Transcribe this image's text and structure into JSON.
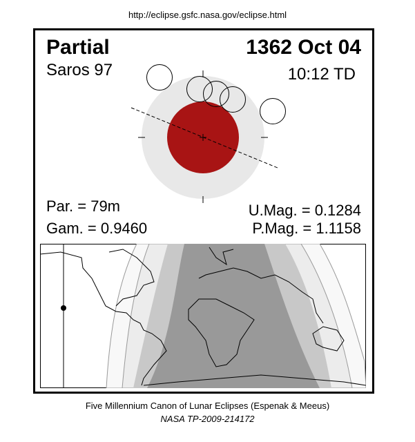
{
  "url": "http://eclipse.gsfc.nasa.gov/eclipse.html",
  "eclipse_type": "Partial",
  "date": "1362 Oct 04",
  "saros": "Saros  97",
  "time": "10:12 TD",
  "parameters": {
    "duration": "Par. =  79m",
    "gamma": "Gam. = 0.9460",
    "umbral_magnitude": "U.Mag. = 0.1284",
    "penumbral_magnitude": "P.Mag. = 1.1158"
  },
  "colors": {
    "umbra": "#a81414",
    "penumbra": "#e8e8e8",
    "map_umbral": "#999999",
    "map_partial": "#c8c8c8",
    "map_penumbral": "#ececec",
    "map_penumbral_edge": "#f8f8f8"
  },
  "footer": {
    "line1": "Five Millennium Canon of Lunar Eclipses (Espenak & Meeus)",
    "line2": "NASA TP-2009-214172"
  }
}
